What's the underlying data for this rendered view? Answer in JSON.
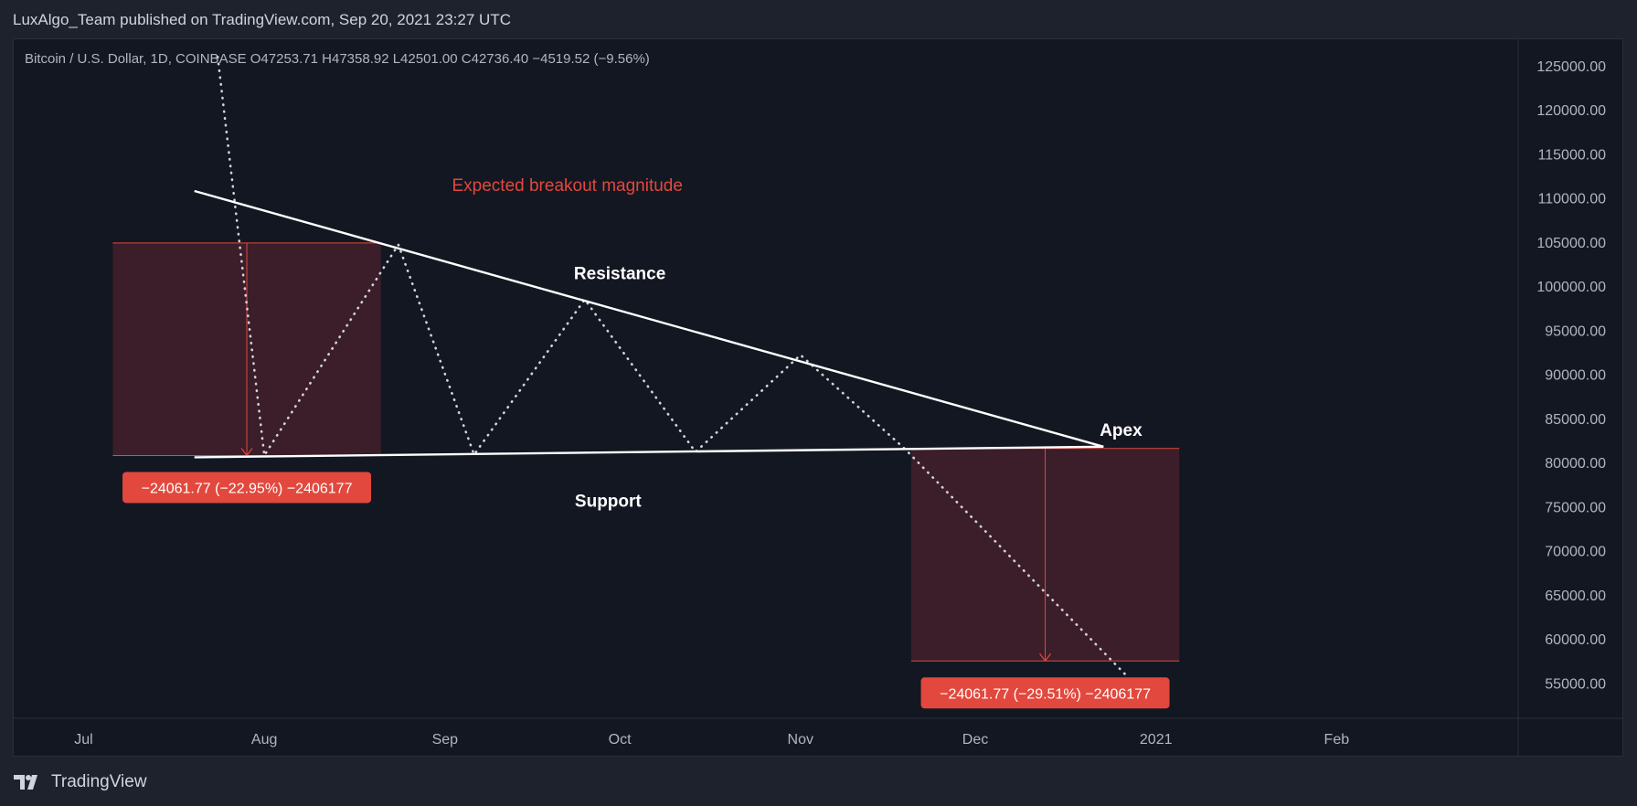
{
  "header": {
    "published_text": "LuxAlgo_Team published on TradingView.com, Sep 20, 2021 23:27 UTC"
  },
  "symbol_info": {
    "text": "Bitcoin / U.S. Dollar, 1D, COINBASE  O47253.71  H47358.92  L42501.00  C42736.40  −4519.52 (−9.56%)"
  },
  "brand": {
    "name": "TradingView",
    "logo_icon": "tradingview-logo-icon"
  },
  "colors": {
    "background": "#131722",
    "outer_background": "#1e222d",
    "text": "#d1d4dc",
    "line": "#ffffff",
    "accent_red": "#e2483d",
    "box_fill": "#43202a"
  },
  "chart_data": {
    "type": "line",
    "title": "",
    "xlabel": "",
    "ylabel": "",
    "x_axis": {
      "ticks": [
        "Jul",
        "Aug",
        "Sep",
        "Oct",
        "Nov",
        "Dec",
        "2021",
        "Feb"
      ],
      "range": [
        "2020-06-19",
        "2021-03-04"
      ]
    },
    "y_axis": {
      "position": "right",
      "ylim": [
        51000,
        128000
      ],
      "ticks": [
        "125000.00",
        "120000.00",
        "115000.00",
        "110000.00",
        "105000.00",
        "100000.00",
        "95000.00",
        "90000.00",
        "85000.00",
        "80000.00",
        "75000.00",
        "70000.00",
        "65000.00",
        "60000.00",
        "55000.00"
      ]
    },
    "grid": false,
    "series": [
      {
        "style": "dotted",
        "x": [
          "2020-07-24",
          "2020-08-01",
          "2020-08-24",
          "2020-09-06",
          "2020-09-25",
          "2020-10-14",
          "2020-11-01",
          "2020-11-19",
          "2020-12-27"
        ],
        "y": [
          126000,
          80800,
          104700,
          80900,
          98500,
          81200,
          92200,
          81500,
          55800
        ]
      },
      {
        "style": "solid",
        "x": [
          "2020-07-20",
          "2020-12-23"
        ],
        "y": [
          110800,
          81800
        ]
      },
      {
        "style": "solid",
        "x": [
          "2020-07-20",
          "2020-12-23"
        ],
        "y": [
          80600,
          81800
        ]
      }
    ],
    "annotations": [
      {
        "text": "Expected breakout magnitude",
        "x": "2020-09-22",
        "y": 110800,
        "color": "#e2483d"
      },
      {
        "text": "Resistance",
        "x": "2020-10-01",
        "y": 100800,
        "color": "#ffffff"
      },
      {
        "text": "Support",
        "x": "2020-09-29",
        "y": 75000,
        "color": "#ffffff"
      },
      {
        "text": "Apex",
        "x": "2020-12-26",
        "y": 83000,
        "color": "#ffffff"
      }
    ],
    "measure_boxes": [
      {
        "x_start": "2020-07-06",
        "x_end": "2020-08-21",
        "y_top": 104900,
        "y_bottom": 80800,
        "label": "−24061.77 (−22.95%) −2406177"
      },
      {
        "x_start": "2020-11-20",
        "x_end": "2021-01-05",
        "y_top": 81600,
        "y_bottom": 57500,
        "label": "−24061.77 (−29.51%) −2406177"
      }
    ]
  }
}
